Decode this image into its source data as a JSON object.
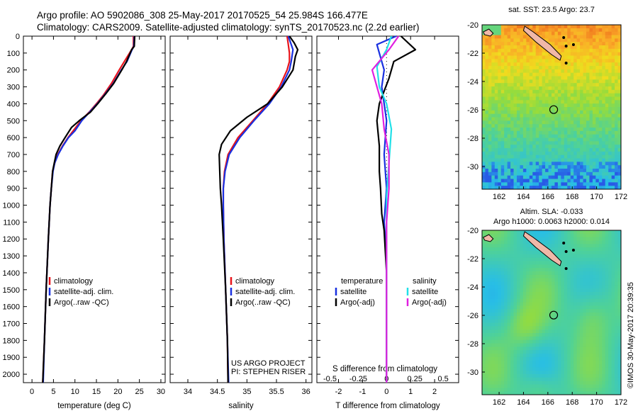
{
  "header": {
    "line1": "Argo profile: AO 5902086_308 25-May-2017 20170525_54 25.984S 166.477E",
    "line2": "Climatology: CARS2009. Satellite-adjusted climatology: synTS_20170523.nc (2.2d earlier)"
  },
  "colors": {
    "climatology": "#e8141b",
    "satellite": "#1930e0",
    "argo": "#000000",
    "sat_salinity": "#22e0e8",
    "argo_salinity": "#e020e0"
  },
  "credits": {
    "project": "US ARGO PROJECT",
    "pi": "PI: STEPHEN RISER",
    "imos": "©IMOS 30-May-2017 20:39:35"
  },
  "map_top": {
    "title": "sat. SST: 23.5 Argo: 23.7",
    "type": "heatmap",
    "xticks": [
      "162",
      "164",
      "166",
      "168",
      "170",
      "172"
    ],
    "yticks": [
      "-20",
      "-22",
      "-24",
      "-26",
      "-28",
      "-30"
    ],
    "marker": {
      "lon": 166.477,
      "lat": -25.984
    }
  },
  "map_bottom": {
    "title1": "Altim. SLA: -0.033",
    "title2": "Argo h1000: 0.0063 h2000: 0.014",
    "type": "heatmap",
    "xticks": [
      "162",
      "164",
      "166",
      "168",
      "170",
      "172"
    ],
    "yticks": [
      "-20",
      "-22",
      "-24",
      "-26",
      "-28",
      "-30"
    ],
    "marker": {
      "lon": 166.477,
      "lat": -25.984
    }
  },
  "chart_data": [
    {
      "type": "line",
      "xlabel": "temperature (deg C)",
      "xlim": [
        -2,
        31
      ],
      "ylim": [
        2050,
        0
      ],
      "xticks": [
        0,
        5,
        10,
        15,
        20,
        25,
        30
      ],
      "yticks": [
        0,
        100,
        200,
        300,
        400,
        500,
        600,
        700,
        800,
        900,
        1000,
        1100,
        1200,
        1300,
        1400,
        1500,
        1600,
        1700,
        1800,
        1900,
        2000
      ],
      "legend_position": "lower-left",
      "series": [
        {
          "name": "climatology",
          "color": "#e8141b",
          "points": [
            [
              23.6,
              0
            ],
            [
              23.6,
              60
            ],
            [
              23.2,
              80
            ],
            [
              21.5,
              150
            ],
            [
              20.3,
              200
            ],
            [
              18.5,
              280
            ],
            [
              16.6,
              350
            ],
            [
              15,
              400
            ],
            [
              13.3,
              450
            ],
            [
              11.4,
              500
            ],
            [
              9.6,
              560
            ],
            [
              8.4,
              600
            ],
            [
              7.1,
              650
            ],
            [
              6,
              700
            ],
            [
              5.3,
              750
            ],
            [
              4.8,
              800
            ],
            [
              4.5,
              900
            ],
            [
              4.2,
              1000
            ],
            [
              3.8,
              1200
            ],
            [
              3.3,
              1500
            ],
            [
              2.9,
              1800
            ],
            [
              2.5,
              2050
            ]
          ]
        },
        {
          "name": "satellite-adj. clim.",
          "color": "#1930e0",
          "points": [
            [
              23.8,
              0
            ],
            [
              23.7,
              60
            ],
            [
              23.3,
              80
            ],
            [
              22.1,
              150
            ],
            [
              20.8,
              200
            ],
            [
              18.9,
              280
            ],
            [
              16.8,
              350
            ],
            [
              15.2,
              400
            ],
            [
              13.4,
              450
            ],
            [
              11.6,
              500
            ],
            [
              10,
              560
            ],
            [
              8.5,
              600
            ],
            [
              7.2,
              650
            ],
            [
              6.1,
              700
            ],
            [
              5.3,
              750
            ],
            [
              4.9,
              800
            ],
            [
              4.5,
              900
            ],
            [
              4.2,
              1000
            ],
            [
              3.8,
              1200
            ],
            [
              3.3,
              1500
            ],
            [
              2.9,
              1800
            ],
            [
              2.6,
              2050
            ]
          ]
        },
        {
          "name": "Argo(..raw -QC)",
          "color": "#000000",
          "points": [
            [
              23.9,
              0
            ],
            [
              23.8,
              60
            ],
            [
              23.2,
              80
            ],
            [
              22,
              150
            ],
            [
              20.9,
              200
            ],
            [
              19,
              280
            ],
            [
              17.2,
              340
            ],
            [
              15.3,
              400
            ],
            [
              13.6,
              450
            ],
            [
              11,
              500
            ],
            [
              9.2,
              540
            ],
            [
              7.7,
              600
            ],
            [
              6.5,
              650
            ],
            [
              5.6,
              700
            ],
            [
              5.2,
              750
            ],
            [
              4.8,
              800
            ],
            [
              4.5,
              900
            ],
            [
              4.2,
              1000
            ],
            [
              3.8,
              1200
            ],
            [
              3.3,
              1500
            ],
            [
              2.9,
              1800
            ],
            [
              2.5,
              2050
            ]
          ]
        }
      ]
    },
    {
      "type": "line",
      "xlabel": "salinity",
      "xlim": [
        33.7,
        36.1
      ],
      "ylim": [
        2050,
        0
      ],
      "xticks": [
        34,
        34.5,
        35,
        35.5,
        36
      ],
      "legend_position": "lower-right",
      "series": [
        {
          "name": "climatology",
          "color": "#e8141b",
          "points": [
            [
              35.68,
              0
            ],
            [
              35.7,
              50
            ],
            [
              35.72,
              100
            ],
            [
              35.72,
              150
            ],
            [
              35.68,
              200
            ],
            [
              35.55,
              300
            ],
            [
              35.35,
              400
            ],
            [
              35.1,
              500
            ],
            [
              34.85,
              600
            ],
            [
              34.68,
              700
            ],
            [
              34.62,
              800
            ],
            [
              34.6,
              900
            ],
            [
              34.6,
              1000
            ],
            [
              34.61,
              1200
            ],
            [
              34.64,
              1500
            ],
            [
              34.67,
              1800
            ],
            [
              34.68,
              2050
            ]
          ]
        },
        {
          "name": "satellite-adj. clim.",
          "color": "#1930e0",
          "points": [
            [
              35.7,
              0
            ],
            [
              35.75,
              50
            ],
            [
              35.78,
              80
            ],
            [
              35.75,
              150
            ],
            [
              35.72,
              200
            ],
            [
              35.58,
              300
            ],
            [
              35.38,
              400
            ],
            [
              35.12,
              500
            ],
            [
              34.88,
              600
            ],
            [
              34.7,
              700
            ],
            [
              34.63,
              800
            ],
            [
              34.6,
              900
            ],
            [
              34.6,
              1000
            ],
            [
              34.61,
              1200
            ],
            [
              34.64,
              1500
            ],
            [
              34.67,
              1800
            ],
            [
              34.69,
              2050
            ]
          ]
        },
        {
          "name": "Argo(..raw -QC)",
          "color": "#000000",
          "points": [
            [
              35.72,
              0
            ],
            [
              35.8,
              40
            ],
            [
              35.86,
              80
            ],
            [
              35.82,
              120
            ],
            [
              35.78,
              200
            ],
            [
              35.6,
              300
            ],
            [
              35.35,
              400
            ],
            [
              35,
              480
            ],
            [
              34.72,
              560
            ],
            [
              34.57,
              640
            ],
            [
              34.53,
              700
            ],
            [
              34.54,
              800
            ],
            [
              34.55,
              900
            ],
            [
              34.57,
              1000
            ],
            [
              34.6,
              1200
            ],
            [
              34.64,
              1500
            ],
            [
              34.67,
              1800
            ],
            [
              34.68,
              2050
            ]
          ]
        }
      ]
    },
    {
      "type": "line",
      "xlabel": "T difference from climatology",
      "xlabel_top": "S difference from climatology",
      "xlim": [
        -2.9,
        3.0
      ],
      "ylim": [
        2050,
        0
      ],
      "xticks": [
        -2,
        -1,
        0,
        1,
        2
      ],
      "xticks_top": [
        "-0.5",
        "-0.25",
        "0",
        "0.25",
        "0.5"
      ],
      "legend_position": "lower-center",
      "legend_headers": [
        "temperature",
        "salinity"
      ],
      "series": [
        {
          "name": "satellite",
          "quantity": "temperature",
          "color": "#1930e0",
          "points": [
            [
              0.4,
              0
            ],
            [
              -0.4,
              50
            ],
            [
              -0.3,
              100
            ],
            [
              -0.1,
              200
            ],
            [
              -0.2,
              300
            ],
            [
              -0.1,
              400
            ],
            [
              0,
              500
            ],
            [
              -0.1,
              700
            ],
            [
              0,
              900
            ],
            [
              -0.1,
              1100
            ],
            [
              0,
              1300
            ],
            [
              0,
              2050
            ]
          ]
        },
        {
          "name": "Argo(-adj)",
          "quantity": "temperature",
          "color": "#000000",
          "points": [
            [
              0.6,
              0
            ],
            [
              1.2,
              80
            ],
            [
              0.3,
              150
            ],
            [
              0.1,
              250
            ],
            [
              -0.3,
              400
            ],
            [
              -0.4,
              500
            ],
            [
              -0.3,
              650
            ],
            [
              -0.3,
              800
            ],
            [
              -0.25,
              900
            ],
            [
              -0.2,
              1050
            ],
            [
              -0.1,
              1150
            ],
            [
              0,
              1400
            ],
            [
              0,
              2050
            ]
          ]
        },
        {
          "name": "satellite",
          "quantity": "salinity",
          "color": "#22e0e8",
          "points": [
            [
              0.2,
              0
            ],
            [
              0,
              80
            ],
            [
              -0.4,
              180
            ],
            [
              -0.3,
              300
            ],
            [
              0,
              400
            ],
            [
              0.2,
              550
            ],
            [
              0.1,
              750
            ],
            [
              0,
              950
            ],
            [
              0,
              1200
            ],
            [
              0,
              2050
            ]
          ]
        },
        {
          "name": "Argo(-adj)",
          "quantity": "salinity",
          "color": "#e020e0",
          "points": [
            [
              0.5,
              0
            ],
            [
              0.1,
              80
            ],
            [
              -0.6,
              200
            ],
            [
              -0.2,
              400
            ],
            [
              -0.1,
              550
            ],
            [
              0.1,
              700
            ],
            [
              0.1,
              900
            ],
            [
              0,
              1100
            ],
            [
              0,
              1400
            ],
            [
              0,
              2050
            ]
          ]
        }
      ]
    }
  ]
}
